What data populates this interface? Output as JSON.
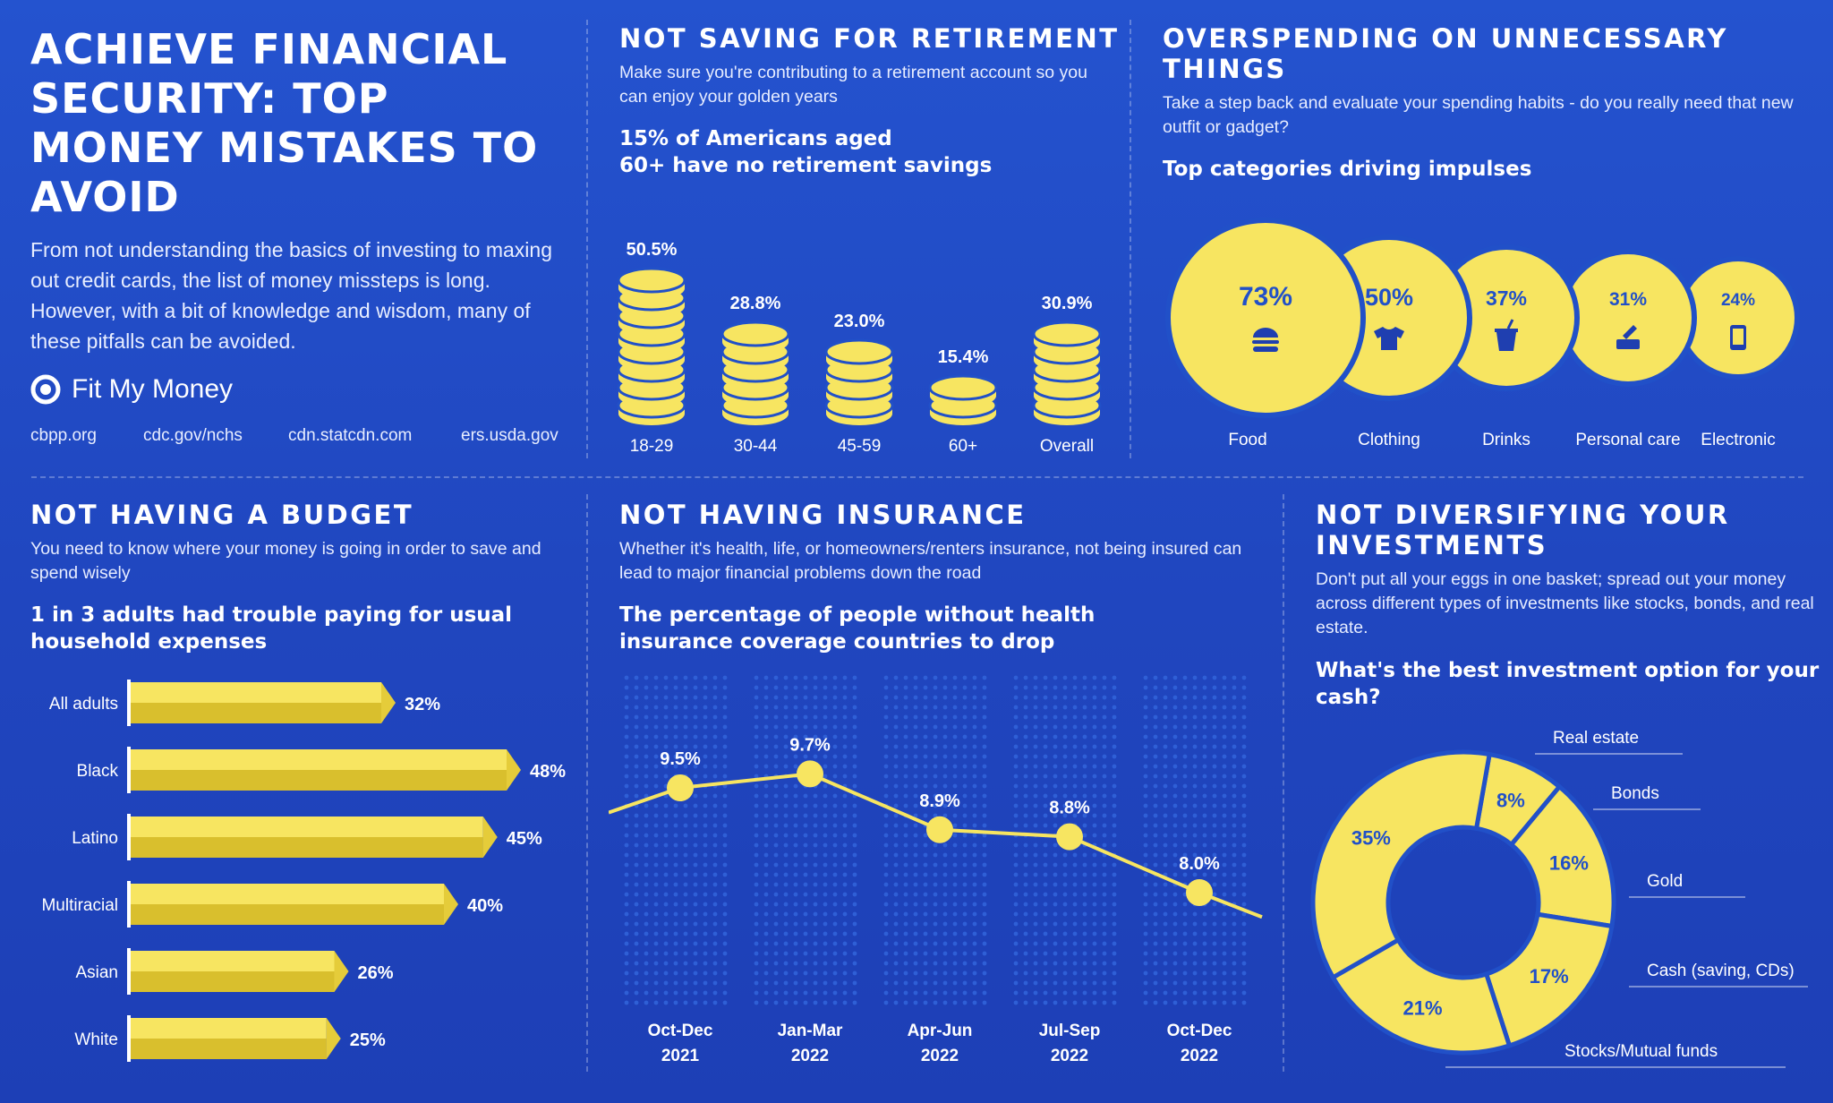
{
  "colors": {
    "background": "#2150c8",
    "accent": "#f7e561",
    "accent_dark": "#d9bf2d",
    "dot": "#2f5fd6"
  },
  "header": {
    "title": "ACHIEVE FINANCIAL SECURITY: TOP MONEY MISTAKES TO AVOID",
    "intro": "From not understanding the basics of investing to maxing out credit cards, the list of money missteps is long. However, with a bit of knowledge and wisdom, many of these pitfalls can be avoided.",
    "brand": "Fit My Money",
    "sources": [
      "cbpp.org",
      "cdc.gov/nchs",
      "cdn.statcdn.com",
      "ers.usda.gov"
    ]
  },
  "retirement": {
    "title": "NOT SAVING FOR RETIREMENT",
    "subtitle": "Make sure you're contributing to a retirement account so you can enjoy your golden years",
    "stat_line1": "15% of Americans aged",
    "stat_line2": "60+ have no retirement savings"
  },
  "overspending": {
    "title_line1": "OVERSPENDING ON UNNECESSARY",
    "title_line2": "THINGS",
    "subtitle": "Take a step back and evaluate your spending habits - do you really need that new outfit or gadget?",
    "stat": "Top categories driving impulses"
  },
  "budget": {
    "title": "NOT HAVING A BUDGET",
    "subtitle": "You need to know where your money is going in order to save and spend wisely",
    "stat_line1": "1 in 3 adults had trouble paying for usual",
    "stat_line2": "household expenses"
  },
  "insurance": {
    "title": "NOT HAVING INSURANCE",
    "subtitle": "Whether it's health, life, or homeowners/renters insurance, not being insured can lead to major financial problems down the road",
    "stat_line1": "The percentage of people without health",
    "stat_line2": "insurance coverage countries to drop"
  },
  "diversify": {
    "title_line1": "NOT DIVERSIFYING YOUR",
    "title_line2": "INVESTMENTS",
    "subtitle": "Don't put all your eggs in one basket; spread out your money across different types of investments like stocks, bonds, and real estate.",
    "stat_line1": "What's the best investment option for your",
    "stat_line2": "cash?"
  },
  "chart_data": [
    {
      "type": "bar",
      "style": "coin-stacks",
      "categories": [
        "18-29",
        "30-44",
        "45-59",
        "60+",
        "Overall"
      ],
      "values": [
        50.5,
        28.8,
        23.0,
        15.4,
        30.9
      ],
      "labels": [
        "50.5%",
        "28.8%",
        "23.0%",
        "15.4%",
        "30.9%"
      ]
    },
    {
      "type": "bubble",
      "categories": [
        "Food",
        "Clothing",
        "Drinks",
        "Personal care",
        "Electronic"
      ],
      "values": [
        73,
        50,
        37,
        31,
        24
      ],
      "labels": [
        "73%",
        "50%",
        "37%",
        "31%",
        "24%"
      ],
      "icons": [
        "burger-icon",
        "tshirt-icon",
        "cup-icon",
        "cosmetics-icon",
        "phone-icon"
      ]
    },
    {
      "type": "bar",
      "orientation": "horizontal",
      "categories": [
        "All adults",
        "Black",
        "Latino",
        "Multiracial",
        "Asian",
        "White"
      ],
      "values": [
        32,
        48,
        45,
        40,
        26,
        25
      ],
      "labels": [
        "32%",
        "48%",
        "45%",
        "40%",
        "26%",
        "25%"
      ]
    },
    {
      "type": "line",
      "categories": [
        "Oct-Dec",
        "Jan-Mar",
        "Apr-Jun",
        "Jul-Sep",
        "Oct-Dec"
      ],
      "years": [
        "2021",
        "2022",
        "2022",
        "2022",
        "2022"
      ],
      "values": [
        9.5,
        9.7,
        8.9,
        8.8,
        8.0
      ],
      "labels": [
        "9.5%",
        "9.7%",
        "8.9%",
        "8.8%",
        "8.0%"
      ]
    },
    {
      "type": "pie",
      "style": "donut",
      "categories": [
        "Real estate",
        "Bonds",
        "Gold",
        "Cash (saving, CDs)",
        "Stocks/Mutual funds"
      ],
      "values": [
        8,
        16,
        17,
        21,
        35
      ],
      "labels": [
        "8%",
        "16%",
        "17%",
        "21%",
        "35%"
      ],
      "legend": [
        "Real estate",
        "Bonds",
        "Gold",
        "Cash (saving, CDs)",
        "Stocks/Mutual funds"
      ]
    }
  ]
}
